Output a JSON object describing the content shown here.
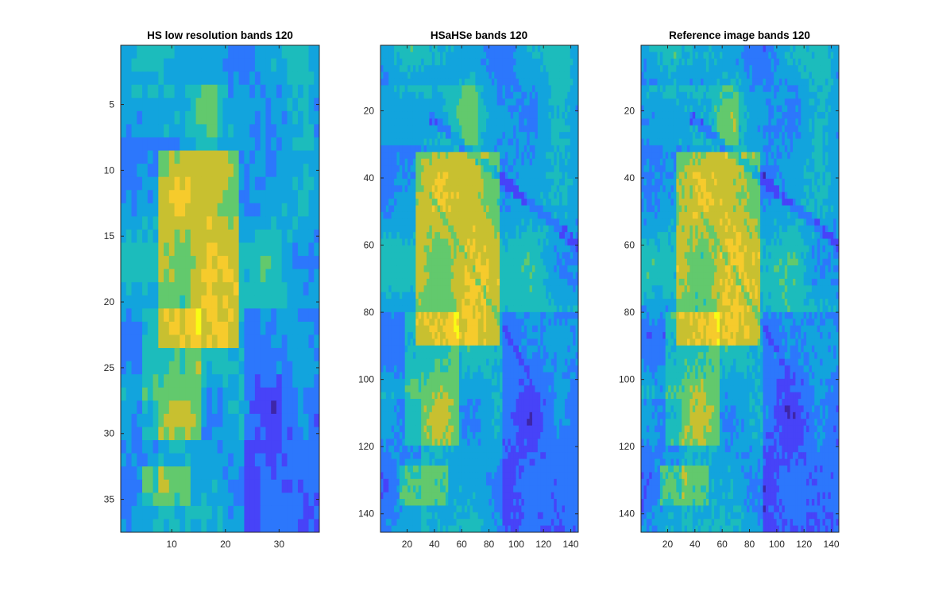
{
  "figure": {
    "colormap": "parula",
    "colors": [
      "#3e26a8",
      "#4743f8",
      "#2c77fc",
      "#12a4dd",
      "#1cbcbc",
      "#62c96d",
      "#c8c030",
      "#f6cb2c",
      "#f9fb15"
    ],
    "panels": [
      {
        "title": "HS low resolution bands 120",
        "rows": 37,
        "cols": 37,
        "xticks": [
          10,
          20,
          30
        ],
        "yticks": [
          5,
          10,
          15,
          20,
          25,
          30,
          35
        ],
        "xlim": [
          0.5,
          37.5
        ],
        "ylim": [
          0.5,
          37.5
        ]
      },
      {
        "title": "HSaHSe bands 120",
        "rows": 145,
        "cols": 145,
        "xticks": [
          20,
          40,
          60,
          80,
          100,
          120,
          140
        ],
        "yticks": [
          20,
          40,
          60,
          80,
          100,
          120,
          140
        ],
        "xlim": [
          0.5,
          145.5
        ],
        "ylim": [
          0.5,
          145.5
        ]
      },
      {
        "title": "Reference image bands 120",
        "rows": 145,
        "cols": 145,
        "xticks": [
          20,
          40,
          60,
          80,
          100,
          120,
          140
        ],
        "yticks": [
          20,
          40,
          60,
          80,
          100,
          120,
          140
        ],
        "xlim": [
          0.5,
          145.5
        ],
        "ylim": [
          0.5,
          145.5
        ]
      }
    ]
  }
}
